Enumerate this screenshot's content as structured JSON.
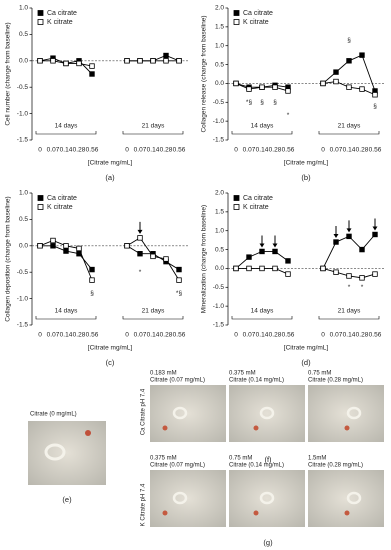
{
  "chart_data": [
    {
      "type": "line",
      "ylabel": "Cell number (change from baseline)",
      "xlabel": "[Citrate mg/mL]",
      "caption": "(a)",
      "categories": [
        "0",
        "0.07",
        "0.14",
        "0.28",
        "0.56",
        "0",
        "0.07",
        "0.14",
        "0.28",
        "0.56"
      ],
      "groups": [
        "14 days",
        "21 days"
      ],
      "series": [
        {
          "name": "Ca citrate",
          "color": "#000000",
          "marker": "filled",
          "values": [
            0,
            0.05,
            -0.05,
            0,
            -0.25,
            0,
            0,
            0,
            0.1,
            0
          ]
        },
        {
          "name": "K citrate",
          "color": "#000000",
          "marker": "open",
          "values": [
            0,
            0,
            -0.05,
            -0.05,
            -0.1,
            0,
            0,
            0,
            0,
            0
          ]
        }
      ],
      "ylim": [
        -1.5,
        1.0
      ],
      "yticks": [
        -1.5,
        {
          "value": -1.0,
          "label": "-1.0"
        },
        -0.5,
        {
          "value": 0,
          "label": "0.0"
        },
        0.5,
        {
          "value": 1.0,
          "label": "1.0"
        }
      ],
      "reference_line": 0,
      "annotations": []
    },
    {
      "type": "line",
      "ylabel": "Collagen release (change from baseline)",
      "xlabel": "[Citrate mg/mL]",
      "caption": "(b)",
      "categories": [
        "0",
        "0.07",
        "0.14",
        "0.28",
        "0.56",
        "0",
        "0.07",
        "0.14",
        "0.28",
        "0.56"
      ],
      "groups": [
        "14 days",
        "21 days"
      ],
      "series": [
        {
          "name": "Ca citrate",
          "color": "#000000",
          "marker": "filled",
          "values": [
            0,
            -0.1,
            -0.1,
            -0.05,
            -0.1,
            0,
            0.3,
            0.6,
            0.75,
            -0.2
          ]
        },
        {
          "name": "K citrate",
          "color": "#000000",
          "marker": "open",
          "values": [
            0,
            -0.15,
            -0.1,
            -0.1,
            -0.2,
            0,
            0.05,
            -0.1,
            -0.15,
            -0.3
          ]
        }
      ],
      "ylim": [
        -1.5,
        2.0
      ],
      "yticks": [
        -1.5,
        {
          "value": -1.0,
          "label": "-1.0"
        },
        -0.5,
        {
          "value": 0,
          "label": "0.0"
        },
        0.5,
        {
          "value": 1.0,
          "label": "1.0"
        },
        1.5,
        {
          "value": 2.0,
          "label": "2.0"
        }
      ],
      "reference_line": 0,
      "annotations": [
        "*§",
        "§",
        "§",
        "*",
        "§",
        "§"
      ]
    },
    {
      "type": "line",
      "ylabel": "Collagen deposition (change from baseline)",
      "xlabel": "[Citrate mg/mL]",
      "caption": "(c)",
      "categories": [
        "0",
        "0.07",
        "0.14",
        "0.28",
        "0.56",
        "0",
        "0.07",
        "0.14",
        "0.28",
        "0.56"
      ],
      "groups": [
        "14 days",
        "21 days"
      ],
      "series": [
        {
          "name": "Ca citrate",
          "color": "#000000",
          "marker": "filled",
          "values": [
            0,
            0,
            -0.1,
            -0.15,
            -0.45,
            0,
            -0.15,
            -0.15,
            -0.3,
            -0.45
          ]
        },
        {
          "name": "K citrate",
          "color": "#000000",
          "marker": "open",
          "values": [
            0,
            0.1,
            0,
            -0.05,
            -0.65,
            0,
            0.15,
            -0.2,
            -0.25,
            -0.65
          ]
        }
      ],
      "ylim": [
        -1.5,
        1.0
      ],
      "yticks": [
        -1.5,
        {
          "value": -1.0,
          "label": "-1.0"
        },
        -0.5,
        {
          "value": 0,
          "label": "0.0"
        },
        0.5,
        {
          "value": 1.0,
          "label": "1.0"
        }
      ],
      "reference_line": 0,
      "annotations": [
        "§",
        "*",
        "*§"
      ]
    },
    {
      "type": "line",
      "ylabel": "Mineralization (change from baseline)",
      "xlabel": "[Citrate mg/mL]",
      "caption": "(d)",
      "categories": [
        "0",
        "0.07",
        "0.14",
        "0.28",
        "0.56",
        "0",
        "0.07",
        "0.14",
        "0.28",
        "0.56"
      ],
      "groups": [
        "14 days",
        "21 days"
      ],
      "series": [
        {
          "name": "Ca citrate",
          "color": "#000000",
          "marker": "filled",
          "values": [
            0,
            0.3,
            0.45,
            0.45,
            0.2,
            0,
            0.7,
            0.85,
            0.5,
            0.9
          ]
        },
        {
          "name": "K citrate",
          "color": "#000000",
          "marker": "open",
          "values": [
            0,
            0,
            0,
            0,
            -0.15,
            0,
            -0.1,
            -0.2,
            -0.25,
            -0.15
          ]
        }
      ],
      "ylim": [
        -1.5,
        2.0
      ],
      "yticks": [
        -1.5,
        {
          "value": -1.0,
          "label": "-1.0"
        },
        -0.5,
        {
          "value": 0,
          "label": "0.0"
        },
        0.5,
        {
          "value": 1.0,
          "label": "1.0"
        },
        1.5,
        {
          "value": 2.0,
          "label": "2.0"
        }
      ],
      "reference_line": 0,
      "annotations": [
        "*",
        "*"
      ]
    }
  ],
  "images": {
    "e": {
      "label": "Citrate (0 mg/mL)",
      "caption": "(e)"
    },
    "f": {
      "row_label": "Ca Citrate pH 7.4",
      "caption": "(f)",
      "panels": [
        [
          "0.183 mM",
          "Citrate (0.07 mg/mL)"
        ],
        [
          "0.375 mM",
          "Citrate (0.14 mg/mL)"
        ],
        [
          "0.75 mM",
          "Citrate (0.28 mg/mL)"
        ]
      ]
    },
    "g": {
      "row_label": "K Citrate pH 7.4",
      "caption": "(g)",
      "panels": [
        [
          "0.375 mM",
          "Citrate (0.07 mg/mL)"
        ],
        [
          "0.75 mM",
          "Citrate (0.14 mg/mL)"
        ],
        [
          "1.5mM",
          "Citrate (0.28 mg/mL)"
        ]
      ]
    }
  }
}
